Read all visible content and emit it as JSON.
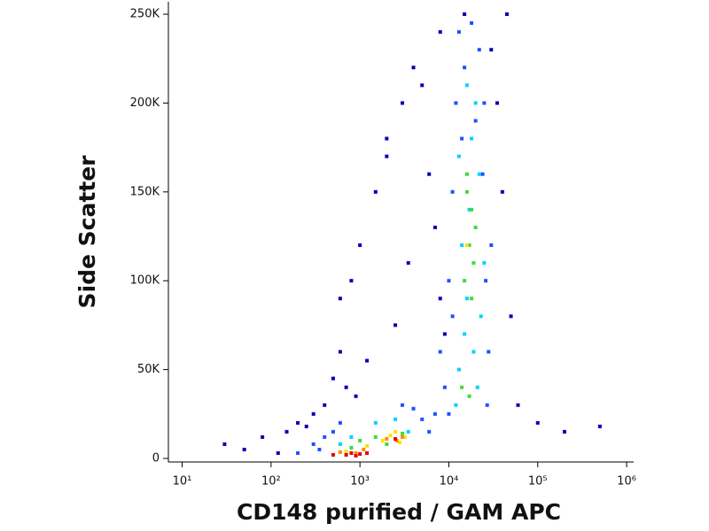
{
  "chart_data": {
    "type": "scatter",
    "x_label": "CD148 purified / GAM APC",
    "y_label": "Side Scatter",
    "xscale": "log",
    "xlim": [
      7,
      1200000
    ],
    "xticks": [
      {
        "value": 10,
        "label": "10¹"
      },
      {
        "value": 100,
        "label": "10²"
      },
      {
        "value": 1000,
        "label": "10³"
      },
      {
        "value": 10000,
        "label": "10⁴"
      },
      {
        "value": 100000,
        "label": "10⁵"
      },
      {
        "value": 1000000,
        "label": "10⁶"
      }
    ],
    "ylim": [
      -2000,
      257000
    ],
    "yticks": [
      0,
      {
        "value": 50000,
        "label": "50K"
      },
      {
        "value": 100000,
        "label": "100K"
      },
      {
        "value": 150000,
        "label": "150K"
      },
      {
        "value": 200000,
        "label": "200K"
      },
      {
        "value": 250000,
        "label": "250K"
      }
    ],
    "series": [
      {
        "color": "#0000b4",
        "x": [
          30,
          50,
          80,
          120,
          150,
          200,
          250,
          300,
          400,
          500,
          600,
          800,
          1000,
          1500,
          2000,
          3000,
          4000,
          5000,
          6000,
          7000,
          8000,
          9000,
          30000,
          40000,
          50000,
          60000,
          100000,
          200000,
          500000,
          700,
          900,
          1200,
          2500,
          3500,
          45000,
          35000,
          600,
          2000,
          8000,
          15000
        ],
        "values": [
          8000,
          5000,
          12000,
          3000,
          15000,
          20000,
          18000,
          25000,
          30000,
          45000,
          60000,
          100000,
          120000,
          150000,
          180000,
          200000,
          220000,
          210000,
          160000,
          130000,
          90000,
          70000,
          230000,
          150000,
          80000,
          30000,
          20000,
          15000,
          18000,
          40000,
          35000,
          55000,
          75000,
          110000,
          250000,
          200000,
          90000,
          170000,
          240000,
          250000
        ]
      },
      {
        "color": "#1e50ff",
        "x": [
          8000,
          10000,
          11000,
          12000,
          13000,
          14000,
          9000,
          10000,
          25000,
          30000,
          28000,
          27000,
          22000,
          11000,
          7000,
          6000,
          5000,
          4000,
          300,
          400,
          500,
          600,
          200,
          350,
          3000,
          15000,
          18000,
          20000,
          24000,
          26000
        ],
        "values": [
          60000,
          100000,
          150000,
          200000,
          240000,
          180000,
          40000,
          25000,
          200000,
          120000,
          60000,
          30000,
          230000,
          80000,
          25000,
          15000,
          22000,
          28000,
          8000,
          12000,
          15000,
          20000,
          3000,
          5000,
          30000,
          220000,
          245000,
          190000,
          160000,
          100000
        ]
      },
      {
        "color": "#00d2ff",
        "x": [
          12000,
          13000,
          15000,
          16000,
          18000,
          20000,
          22000,
          14000,
          17000,
          19000,
          21000,
          13000,
          25000,
          1500,
          2500,
          3500,
          800,
          600,
          16000,
          23000
        ],
        "values": [
          30000,
          50000,
          70000,
          90000,
          180000,
          200000,
          160000,
          120000,
          140000,
          60000,
          40000,
          170000,
          110000,
          20000,
          22000,
          15000,
          12000,
          8000,
          210000,
          80000
        ]
      },
      {
        "color": "#3cdc3c",
        "x": [
          15000,
          17000,
          18000,
          16000,
          19000,
          20000,
          14000,
          17000,
          1500,
          2000,
          3000,
          800,
          1000,
          18000,
          16000
        ],
        "values": [
          100000,
          120000,
          140000,
          150000,
          110000,
          130000,
          40000,
          35000,
          12000,
          8000,
          14000,
          6000,
          10000,
          90000,
          160000
        ]
      },
      {
        "color": "#f5e600",
        "x": [
          1800,
          2200,
          2800,
          3200,
          1200,
          700,
          2500,
          16000
        ],
        "values": [
          10000,
          13000,
          9000,
          12000,
          7000,
          4000,
          15000,
          120000
        ]
      },
      {
        "color": "#ff8c00",
        "x": [
          2000,
          2600,
          3000,
          900,
          600,
          1100
        ],
        "values": [
          11000,
          10000,
          12000,
          3000,
          3500,
          5000
        ]
      },
      {
        "color": "#e60000",
        "x": [
          700,
          800,
          900,
          1000,
          1200,
          500,
          2500
        ],
        "values": [
          2000,
          3000,
          1500,
          2500,
          3000,
          2000,
          11000
        ]
      }
    ]
  }
}
